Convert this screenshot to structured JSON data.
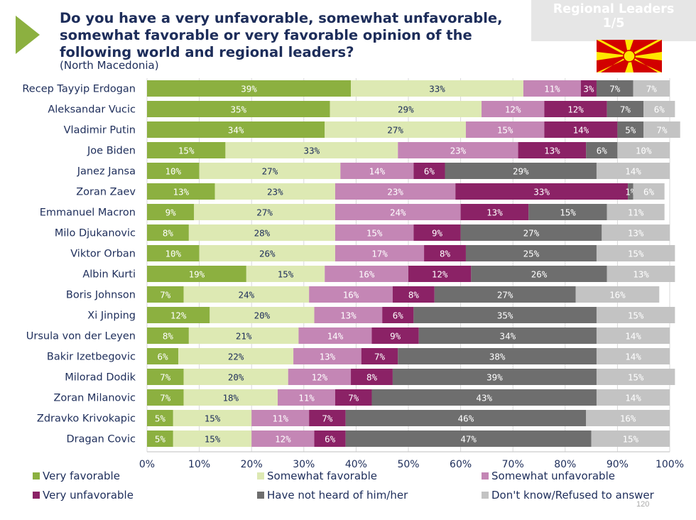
{
  "header": {
    "title": "Do you have a very unfavorable, somewhat unfavorable, somewhat favorable or very favorable opinion of the following world and regional leaders?",
    "subtitle": "(North Macedonia)",
    "badge_line1": "Regional Leaders",
    "badge_line2": "1/5"
  },
  "page_number": "120",
  "colors": {
    "brand_arrow": "#8cb040",
    "title_text": "#1d2d5a",
    "flag_red": "#d20000",
    "flag_yellow": "#ffe600"
  },
  "chart_data": {
    "type": "bar",
    "orientation": "horizontal",
    "stacked": true,
    "categories": [
      "Recep Tayyip Erdogan",
      "Aleksandar Vucic",
      "Vladimir Putin",
      "Joe Biden",
      "Janez Jansa",
      "Zoran Zaev",
      "Emmanuel Macron",
      "Milo Djukanovic",
      "Viktor Orban",
      "Albin Kurti",
      "Boris Johnson",
      "Xi Jinping",
      "Ursula von der Leyen",
      "Bakir Izetbegovic",
      "Milorad Dodik",
      "Zoran Milanovic",
      "Zdravko Krivokapic",
      "Dragan Covic"
    ],
    "series": [
      {
        "name": "Very favorable",
        "color": "#8cb040",
        "text_color": "#ffffff",
        "values": [
          39,
          35,
          34,
          15,
          10,
          13,
          9,
          8,
          10,
          19,
          7,
          12,
          8,
          6,
          7,
          7,
          5,
          5
        ]
      },
      {
        "name": "Somewhat favorable",
        "color": "#dde9b3",
        "text_color": "#1d2d5a",
        "values": [
          33,
          29,
          27,
          33,
          27,
          23,
          27,
          28,
          26,
          15,
          24,
          20,
          21,
          22,
          20,
          18,
          15,
          15
        ]
      },
      {
        "name": "Somewhat unfavorable",
        "color": "#c486b5",
        "text_color": "#ffffff",
        "values": [
          11,
          12,
          15,
          23,
          14,
          23,
          24,
          15,
          17,
          16,
          16,
          13,
          14,
          13,
          12,
          11,
          11,
          12
        ]
      },
      {
        "name": "Very unfavorable",
        "color": "#8b2266",
        "text_color": "#ffffff",
        "values": [
          3,
          12,
          14,
          13,
          6,
          33,
          13,
          9,
          8,
          12,
          8,
          6,
          9,
          7,
          8,
          7,
          7,
          6
        ]
      },
      {
        "name": "Have not heard of him/her",
        "color": "#6e6e6e",
        "text_color": "#ffffff",
        "values": [
          7,
          7,
          5,
          6,
          29,
          1,
          15,
          27,
          25,
          26,
          27,
          35,
          34,
          38,
          39,
          43,
          46,
          47
        ]
      },
      {
        "name": "Don't know/Refused to answer",
        "color": "#c3c3c3",
        "text_color": "#ffffff",
        "values": [
          7,
          6,
          7,
          10,
          14,
          6,
          11,
          13,
          15,
          13,
          16,
          15,
          14,
          14,
          15,
          14,
          16,
          15
        ]
      }
    ],
    "x_ticks": [
      "0%",
      "10%",
      "20%",
      "30%",
      "40%",
      "50%",
      "60%",
      "70%",
      "80%",
      "90%",
      "100%"
    ],
    "xlim": [
      0,
      100
    ],
    "grid": true,
    "legend_position": "bottom"
  }
}
